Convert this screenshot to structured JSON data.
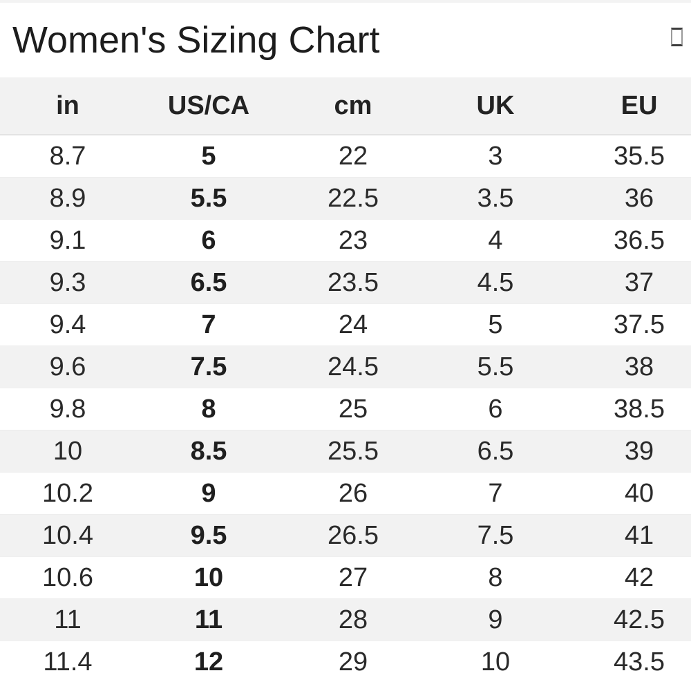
{
  "page": {
    "title": "Women's Sizing Chart",
    "top_right_icon": "missing-glyph-box"
  },
  "table": {
    "columns": [
      "in",
      "US/CA",
      "cm",
      "UK",
      "EU"
    ],
    "bold_column": "US/CA",
    "bold_column_index": 1,
    "rows": [
      [
        "8.7",
        "5",
        "22",
        "3",
        "35.5"
      ],
      [
        "8.9",
        "5.5",
        "22.5",
        "3.5",
        "36"
      ],
      [
        "9.1",
        "6",
        "23",
        "4",
        "36.5"
      ],
      [
        "9.3",
        "6.5",
        "23.5",
        "4.5",
        "37"
      ],
      [
        "9.4",
        "7",
        "24",
        "5",
        "37.5"
      ],
      [
        "9.6",
        "7.5",
        "24.5",
        "5.5",
        "38"
      ],
      [
        "9.8",
        "8",
        "25",
        "6",
        "38.5"
      ],
      [
        "10",
        "8.5",
        "25.5",
        "6.5",
        "39"
      ],
      [
        "10.2",
        "9",
        "26",
        "7",
        "40"
      ],
      [
        "10.4",
        "9.5",
        "26.5",
        "7.5",
        "41"
      ],
      [
        "10.6",
        "10",
        "27",
        "8",
        "42"
      ],
      [
        "11",
        "11",
        "28",
        "9",
        "42.5"
      ],
      [
        "11.4",
        "12",
        "29",
        "10",
        "43.5"
      ]
    ]
  },
  "colors": {
    "header_row_bg": "#f2f2f2",
    "alt_row_bg": "#f2f2f2",
    "row_bg": "#ffffff",
    "title_text": "#1d1d1d",
    "cell_text": "#2a2a2a",
    "row_border": "#ededed"
  },
  "chart_data": {
    "type": "table",
    "title": "Women's Sizing Chart",
    "columns": [
      "in",
      "US/CA",
      "cm",
      "UK",
      "EU"
    ],
    "rows": [
      [
        "8.7",
        "5",
        "22",
        "3",
        "35.5"
      ],
      [
        "8.9",
        "5.5",
        "22.5",
        "3.5",
        "36"
      ],
      [
        "9.1",
        "6",
        "23",
        "4",
        "36.5"
      ],
      [
        "9.3",
        "6.5",
        "23.5",
        "4.5",
        "37"
      ],
      [
        "9.4",
        "7",
        "24",
        "5",
        "37.5"
      ],
      [
        "9.6",
        "7.5",
        "24.5",
        "5.5",
        "38"
      ],
      [
        "9.8",
        "8",
        "25",
        "6",
        "38.5"
      ],
      [
        "10",
        "8.5",
        "25.5",
        "6.5",
        "39"
      ],
      [
        "10.2",
        "9",
        "26",
        "7",
        "40"
      ],
      [
        "10.4",
        "9.5",
        "26.5",
        "7.5",
        "41"
      ],
      [
        "10.6",
        "10",
        "27",
        "8",
        "42"
      ],
      [
        "11",
        "11",
        "28",
        "9",
        "42.5"
      ],
      [
        "11.4",
        "12",
        "29",
        "10",
        "43.5"
      ]
    ]
  }
}
